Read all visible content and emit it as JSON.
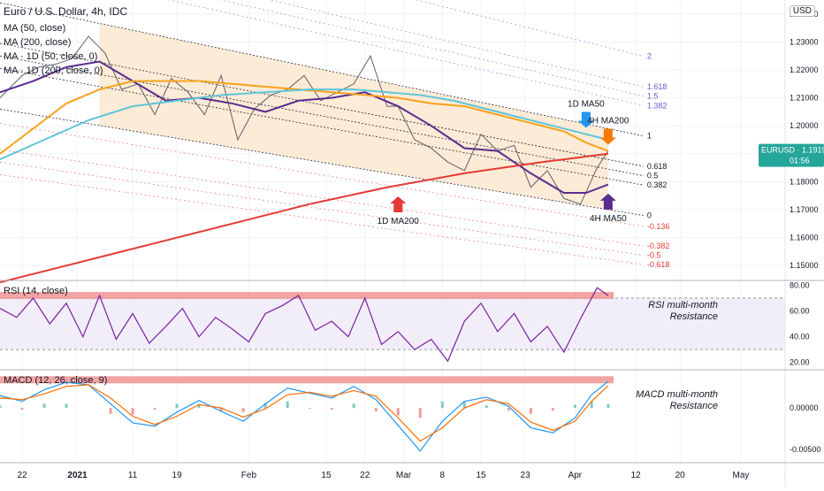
{
  "header": {
    "title": "Euro / U.S. Dollar, 4h, IDC",
    "currency_badge": "USD",
    "indicators": [
      "MA (50, close)",
      "MA (200, close)",
      "MA · 1D (50, close, 0)",
      "MA · 1D (200, close, 0)"
    ]
  },
  "price_tag": {
    "symbol": "EURUSD",
    "value": "1.19192",
    "countdown": "01:56"
  },
  "chart_data": [
    {
      "type": "line",
      "panel": "price",
      "ylim": [
        1.145,
        1.245
      ],
      "y_ticks": [
        "1.24000",
        "1.23000",
        "1.22000",
        "1.21000",
        "1.20000",
        "1.19000",
        "1.18000",
        "1.17000",
        "1.16000",
        "1.15000"
      ],
      "y_tick_values": [
        1.24,
        1.23,
        1.22,
        1.21,
        1.2,
        1.19,
        1.18,
        1.17,
        1.16,
        1.15
      ],
      "x_ticks": [
        "22",
        "2021",
        "11",
        "19",
        "Feb",
        "15",
        "22",
        "Mar",
        "8",
        "15",
        "23",
        "Apr",
        "12",
        "20",
        "May"
      ],
      "x_tick_days": [
        -10,
        0,
        10,
        18,
        31,
        45,
        52,
        59,
        66,
        73,
        81,
        90,
        101,
        109,
        120
      ],
      "xlim": [
        -14,
        128
      ],
      "series": [
        {
          "name": "EURUSD",
          "color": "#5d606b",
          "x": [
            -14,
            -10,
            -7,
            -4,
            -1,
            2,
            5,
            8,
            11,
            14,
            17,
            20,
            23,
            26,
            29,
            32,
            35,
            38,
            41,
            44,
            47,
            50,
            53,
            56,
            58,
            61,
            64,
            67,
            70,
            73,
            76,
            79,
            82,
            85,
            88,
            91,
            94,
            96
          ],
          "y": [
            1.21,
            1.218,
            1.221,
            1.222,
            1.224,
            1.232,
            1.226,
            1.213,
            1.215,
            1.204,
            1.217,
            1.212,
            1.204,
            1.218,
            1.195,
            1.206,
            1.211,
            1.213,
            1.218,
            1.209,
            1.212,
            1.215,
            1.225,
            1.207,
            1.207,
            1.195,
            1.192,
            1.187,
            1.184,
            1.197,
            1.191,
            1.193,
            1.178,
            1.184,
            1.174,
            1.172,
            1.185,
            1.191
          ]
        },
        {
          "name": "4H MA50",
          "color": "#5b2c8f",
          "x": [
            -14,
            -8,
            -2,
            4,
            10,
            16,
            22,
            28,
            34,
            40,
            46,
            52,
            58,
            64,
            70,
            76,
            82,
            88,
            92,
            96
          ],
          "y": [
            1.212,
            1.216,
            1.221,
            1.223,
            1.216,
            1.209,
            1.21,
            1.208,
            1.205,
            1.209,
            1.21,
            1.212,
            1.207,
            1.2,
            1.192,
            1.191,
            1.183,
            1.176,
            1.176,
            1.179
          ]
        },
        {
          "name": "4H MA200",
          "color": "#f7a21b",
          "x": [
            -14,
            -8,
            -2,
            4,
            10,
            16,
            22,
            28,
            34,
            40,
            46,
            52,
            58,
            64,
            70,
            76,
            82,
            88,
            92,
            96
          ],
          "y": [
            1.19,
            1.199,
            1.208,
            1.213,
            1.216,
            1.216,
            1.216,
            1.215,
            1.214,
            1.213,
            1.212,
            1.211,
            1.21,
            1.208,
            1.207,
            1.204,
            1.201,
            1.198,
            1.194,
            1.191
          ]
        },
        {
          "name": "1D MA50",
          "color": "#5fc4d8",
          "x": [
            -14,
            -6,
            2,
            10,
            18,
            26,
            34,
            42,
            50,
            56,
            62,
            68,
            74,
            80,
            86,
            92,
            96
          ],
          "y": [
            1.188,
            1.195,
            1.202,
            1.207,
            1.209,
            1.211,
            1.212,
            1.213,
            1.213,
            1.212,
            1.211,
            1.209,
            1.206,
            1.203,
            1.2,
            1.197,
            1.195
          ]
        },
        {
          "name": "1D MA200",
          "color": "#e53935",
          "x": [
            -14,
            0,
            14,
            28,
            42,
            56,
            70,
            84,
            96
          ],
          "y": [
            1.144,
            1.151,
            1.158,
            1.165,
            1.172,
            1.178,
            1.183,
            1.187,
            1.19
          ]
        }
      ],
      "channel_levels": [
        {
          "label": "2",
          "color": "#6a5acd"
        },
        {
          "label": "1.618",
          "color": "#6a5acd"
        },
        {
          "label": "1.5",
          "color": "#6a5acd"
        },
        {
          "label": "1.382",
          "color": "#6a5acd"
        },
        {
          "label": "1",
          "color": "#131722"
        },
        {
          "label": "0.618",
          "color": "#131722"
        },
        {
          "label": "0.5",
          "color": "#131722"
        },
        {
          "label": "0.382",
          "color": "#131722"
        },
        {
          "label": "0",
          "color": "#131722"
        },
        {
          "label": "-0.136",
          "color": "#e53935"
        },
        {
          "label": "-0.382",
          "color": "#e53935"
        },
        {
          "label": "-0.5",
          "color": "#e53935"
        },
        {
          "label": "-0.618",
          "color": "#e53935"
        }
      ],
      "channel_bounds": {
        "x": [
          -14,
          96
        ],
        "level0_start": 1.206,
        "level0_end": 1.17,
        "level1_start": 1.244,
        "level1_end": 1.199
      },
      "annotations": [
        {
          "text": "1D MA50",
          "arrow": "down",
          "color": "#2196f3",
          "x": 92,
          "y": 1.198
        },
        {
          "text": "4H MA200",
          "arrow": "down",
          "color": "#f57c00",
          "x": 96,
          "y": 1.192
        },
        {
          "text": "1D MA200",
          "arrow": "up",
          "color": "#e53935",
          "x": 58,
          "y": 1.176
        },
        {
          "text": "4H MA50",
          "arrow": "up",
          "color": "#5b2c8f",
          "x": 96,
          "y": 1.177
        }
      ]
    },
    {
      "type": "line",
      "panel": "rsi",
      "title": "RSI (14, close)",
      "ylim": [
        15,
        83
      ],
      "y_ticks": [
        "80.00",
        "60.00",
        "40.00",
        "20.00"
      ],
      "y_tick_values": [
        80,
        60,
        40,
        20
      ],
      "bands": [
        30,
        70
      ],
      "resistance": 72,
      "annotation": "RSI multi-month\nResistance",
      "series": [
        {
          "name": "RSI",
          "color": "#7b1fa2",
          "x": [
            -14,
            -11,
            -8,
            -5,
            -2,
            1,
            4,
            7,
            10,
            13,
            16,
            19,
            22,
            25,
            28,
            31,
            34,
            37,
            40,
            43,
            46,
            49,
            52,
            55,
            58,
            61,
            64,
            67,
            70,
            73,
            76,
            79,
            82,
            85,
            88,
            91,
            94,
            96
          ],
          "y": [
            62,
            55,
            70,
            50,
            66,
            40,
            72,
            38,
            58,
            35,
            48,
            62,
            40,
            55,
            46,
            36,
            58,
            64,
            72,
            45,
            52,
            40,
            70,
            34,
            44,
            30,
            38,
            21,
            52,
            66,
            44,
            58,
            36,
            48,
            28,
            54,
            78,
            72
          ]
        }
      ]
    },
    {
      "type": "line",
      "panel": "macd",
      "title": "MACD (12, 26, close, 9)",
      "ylim": [
        -0.0065,
        0.0045
      ],
      "y_ticks": [
        "0.00000",
        "-0.00500"
      ],
      "y_tick_values": [
        0.0,
        -0.005
      ],
      "resistance": 0.0034,
      "annotation": "MACD multi-month\nResistance",
      "series": [
        {
          "name": "MACD",
          "color": "#2196f3",
          "x": [
            -14,
            -10,
            -6,
            -2,
            2,
            6,
            10,
            14,
            18,
            22,
            26,
            30,
            34,
            38,
            42,
            46,
            50,
            54,
            58,
            62,
            66,
            70,
            74,
            78,
            82,
            86,
            90,
            93,
            96
          ],
          "y": [
            0.0015,
            0.0008,
            0.0022,
            0.0031,
            0.0028,
            0.0005,
            -0.0018,
            -0.0022,
            -0.0005,
            0.0009,
            -0.0004,
            -0.0016,
            0.0005,
            0.0024,
            0.0018,
            0.0012,
            0.0026,
            0.001,
            -0.0021,
            -0.0052,
            -0.0016,
            0.0008,
            0.0013,
            0.0002,
            -0.0024,
            -0.003,
            -0.0012,
            0.0016,
            0.0032
          ]
        },
        {
          "name": "Signal",
          "color": "#ff6d00",
          "x": [
            -14,
            -10,
            -6,
            -2,
            2,
            6,
            10,
            14,
            18,
            22,
            26,
            30,
            34,
            38,
            42,
            46,
            50,
            54,
            58,
            62,
            66,
            70,
            74,
            78,
            82,
            86,
            90,
            93,
            96
          ],
          "y": [
            0.0012,
            0.001,
            0.0017,
            0.0026,
            0.0028,
            0.0012,
            -0.001,
            -0.002,
            -0.001,
            0.0004,
            0.0,
            -0.0011,
            -0.0001,
            0.0016,
            0.0019,
            0.0014,
            0.0021,
            0.0014,
            -0.0012,
            -0.004,
            -0.0024,
            0.0,
            0.001,
            0.0005,
            -0.0017,
            -0.0027,
            -0.0016,
            0.0008,
            0.0027
          ]
        }
      ]
    }
  ]
}
